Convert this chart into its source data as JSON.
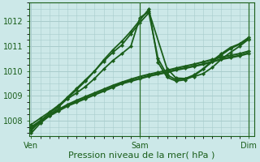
{
  "background_color": "#cce8e8",
  "grid_color": "#a8cccc",
  "line_color": "#1a5e1a",
  "marker_color": "#1a5e1a",
  "title": "Pression niveau de la mer( hPa )",
  "xlabel_ticks": [
    "Ven",
    "Sam",
    "Dim"
  ],
  "xlabel_tick_positions": [
    0.0,
    1.0,
    2.0
  ],
  "ylim": [
    1007.4,
    1012.75
  ],
  "yticks": [
    1008,
    1009,
    1010,
    1011,
    1012
  ],
  "xlim": [
    -0.02,
    2.05
  ],
  "series": [
    {
      "x": [
        0.0,
        0.083,
        0.167,
        0.25,
        0.333,
        0.417,
        0.5,
        0.583,
        0.667,
        0.75,
        0.833,
        0.917,
        1.0,
        1.083,
        1.167,
        1.25,
        1.333,
        1.417,
        1.5,
        1.583,
        1.667,
        1.75,
        1.833,
        1.917,
        2.0
      ],
      "y": [
        1007.7,
        1007.95,
        1008.2,
        1008.4,
        1008.6,
        1008.75,
        1008.9,
        1009.05,
        1009.2,
        1009.35,
        1009.5,
        1009.6,
        1009.7,
        1009.8,
        1009.88,
        1009.95,
        1010.05,
        1010.12,
        1010.2,
        1010.28,
        1010.38,
        1010.48,
        1010.55,
        1010.62,
        1010.72
      ],
      "lw": 1.8,
      "marker": "D",
      "ms": 2.2,
      "zorder": 2
    },
    {
      "x": [
        0.0,
        0.083,
        0.167,
        0.25,
        0.333,
        0.417,
        0.5,
        0.583,
        0.667,
        0.75,
        0.833,
        0.917,
        1.0,
        1.083,
        1.167,
        1.25,
        1.333,
        1.417,
        1.5,
        1.583,
        1.667,
        1.75,
        1.833,
        1.917,
        2.0
      ],
      "y": [
        1007.75,
        1008.0,
        1008.25,
        1008.45,
        1008.65,
        1008.82,
        1008.97,
        1009.12,
        1009.27,
        1009.42,
        1009.55,
        1009.67,
        1009.78,
        1009.87,
        1009.95,
        1010.03,
        1010.12,
        1010.2,
        1010.28,
        1010.37,
        1010.47,
        1010.56,
        1010.63,
        1010.7,
        1010.8
      ],
      "lw": 1.5,
      "marker": "D",
      "ms": 2.2,
      "zorder": 2
    },
    {
      "x": [
        0.0,
        0.083,
        0.167,
        0.25,
        0.333,
        0.417,
        0.5,
        0.583,
        0.667,
        0.75,
        0.833,
        0.917,
        1.0,
        1.083,
        1.167,
        1.25,
        1.333,
        1.417,
        1.5,
        1.583,
        1.667,
        1.75,
        1.833,
        1.917,
        2.0
      ],
      "y": [
        1007.6,
        1008.0,
        1008.3,
        1008.6,
        1008.95,
        1009.3,
        1009.65,
        1010.0,
        1010.4,
        1010.75,
        1011.05,
        1011.5,
        1011.95,
        1012.35,
        1010.5,
        1009.85,
        1009.65,
        1009.7,
        1009.85,
        1010.1,
        1010.42,
        1010.7,
        1010.95,
        1011.1,
        1011.35
      ],
      "lw": 1.3,
      "marker": "D",
      "ms": 2.2,
      "zorder": 3
    },
    {
      "x": [
        0.0,
        0.083,
        0.167,
        0.25,
        0.333,
        0.417,
        0.5,
        0.583,
        0.667,
        0.75,
        0.833,
        0.917,
        1.0,
        1.083,
        1.167,
        1.25,
        1.333,
        1.417,
        1.5,
        1.583,
        1.667,
        1.75,
        1.833,
        1.917,
        2.0
      ],
      "y": [
        1007.5,
        1007.9,
        1008.2,
        1008.55,
        1008.9,
        1009.25,
        1009.6,
        1010.0,
        1010.45,
        1010.85,
        1011.2,
        1011.6,
        1012.05,
        1012.5,
        1010.35,
        1009.75,
        1009.6,
        1009.65,
        1009.82,
        1010.08,
        1010.38,
        1010.65,
        1010.9,
        1011.08,
        1011.3
      ],
      "lw": 1.3,
      "marker": "D",
      "ms": 2.2,
      "zorder": 3
    },
    {
      "x": [
        0.0,
        0.083,
        0.167,
        0.25,
        0.333,
        0.417,
        0.5,
        0.583,
        0.667,
        0.75,
        0.833,
        0.917,
        1.0,
        1.083,
        1.25,
        1.333,
        1.417,
        1.5,
        1.583,
        1.667,
        1.75,
        1.833,
        1.917,
        2.0
      ],
      "y": [
        1007.85,
        1008.1,
        1008.35,
        1008.62,
        1008.88,
        1009.12,
        1009.38,
        1009.7,
        1010.08,
        1010.42,
        1010.7,
        1011.0,
        1012.15,
        1012.4,
        1010.1,
        1009.72,
        1009.7,
        1009.78,
        1009.9,
        1010.15,
        1010.48,
        1010.75,
        1011.0,
        1011.28
      ],
      "lw": 1.3,
      "marker": "D",
      "ms": 2.2,
      "zorder": 3
    }
  ],
  "vline_positions": [
    1.0,
    2.0
  ],
  "vline_color": "#2a6e2a",
  "vline_lw": 0.9,
  "tick_fontsize": 7,
  "label_fontsize": 8
}
